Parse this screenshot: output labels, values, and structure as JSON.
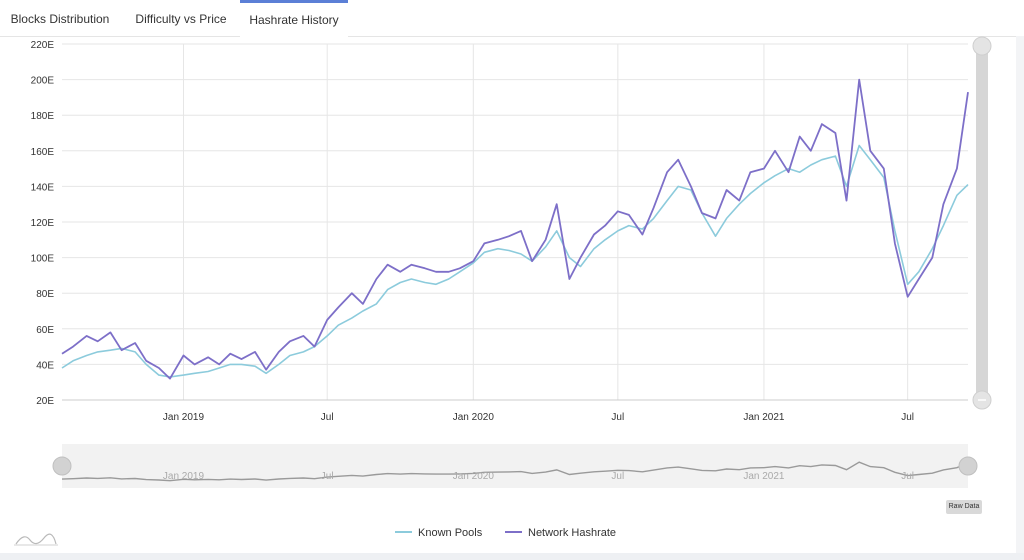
{
  "tabs": [
    {
      "label": "Blocks Distribution",
      "active": false
    },
    {
      "label": "Difficulty vs Price",
      "active": false
    },
    {
      "label": "Hashrate History",
      "active": true
    }
  ],
  "raw_data_button": "Raw Data",
  "colors": {
    "known_pools": "#8ccbdc",
    "network_hashrate": "#7d6fc8",
    "navigator_line": "#9a9a9a",
    "grid": "#e6e6e6",
    "active_tab": "#5b7fd6"
  },
  "chart_data": {
    "type": "line",
    "title": "",
    "xlabel": "",
    "ylabel": "",
    "ylim": [
      20,
      220
    ],
    "y_ticks": [
      {
        "value": 20,
        "label": "20E"
      },
      {
        "value": 40,
        "label": "40E"
      },
      {
        "value": 60,
        "label": "60E"
      },
      {
        "value": 80,
        "label": "80E"
      },
      {
        "value": 100,
        "label": "100E"
      },
      {
        "value": 120,
        "label": "120E"
      },
      {
        "value": 140,
        "label": "140E"
      },
      {
        "value": 160,
        "label": "160E"
      },
      {
        "value": 180,
        "label": "180E"
      },
      {
        "value": 200,
        "label": "200E"
      },
      {
        "value": 220,
        "label": "220E"
      }
    ],
    "x_range": [
      "2018-08-01",
      "2021-09-15"
    ],
    "x_ticks": [
      {
        "date": "2019-01-01",
        "label": "Jan 2019"
      },
      {
        "date": "2019-07-01",
        "label": "Jul"
      },
      {
        "date": "2020-01-01",
        "label": "Jan 2020"
      },
      {
        "date": "2020-07-01",
        "label": "Jul"
      },
      {
        "date": "2021-01-01",
        "label": "Jan 2021"
      },
      {
        "date": "2021-07-01",
        "label": "Jul"
      }
    ],
    "grid": true,
    "legend_position": "bottom-center",
    "series": [
      {
        "name": "Known Pools",
        "color": "#8ccbdc",
        "points": [
          [
            "2018-08-01",
            38
          ],
          [
            "2018-08-15",
            42
          ],
          [
            "2018-09-01",
            45
          ],
          [
            "2018-09-15",
            47
          ],
          [
            "2018-10-01",
            48
          ],
          [
            "2018-10-15",
            49
          ],
          [
            "2018-11-01",
            47
          ],
          [
            "2018-11-15",
            40
          ],
          [
            "2018-12-01",
            34
          ],
          [
            "2018-12-15",
            33
          ],
          [
            "2019-01-01",
            34
          ],
          [
            "2019-01-15",
            35
          ],
          [
            "2019-02-01",
            36
          ],
          [
            "2019-02-15",
            38
          ],
          [
            "2019-03-01",
            40
          ],
          [
            "2019-03-15",
            40
          ],
          [
            "2019-04-01",
            39
          ],
          [
            "2019-04-15",
            35
          ],
          [
            "2019-05-01",
            40
          ],
          [
            "2019-05-15",
            45
          ],
          [
            "2019-06-01",
            47
          ],
          [
            "2019-06-15",
            50
          ],
          [
            "2019-07-01",
            56
          ],
          [
            "2019-07-15",
            62
          ],
          [
            "2019-08-01",
            66
          ],
          [
            "2019-08-15",
            70
          ],
          [
            "2019-09-01",
            74
          ],
          [
            "2019-09-15",
            82
          ],
          [
            "2019-10-01",
            86
          ],
          [
            "2019-10-15",
            88
          ],
          [
            "2019-11-01",
            86
          ],
          [
            "2019-11-15",
            85
          ],
          [
            "2019-12-01",
            88
          ],
          [
            "2019-12-15",
            92
          ],
          [
            "2020-01-01",
            97
          ],
          [
            "2020-01-15",
            103
          ],
          [
            "2020-02-01",
            105
          ],
          [
            "2020-02-15",
            104
          ],
          [
            "2020-03-01",
            102
          ],
          [
            "2020-03-15",
            98
          ],
          [
            "2020-04-01",
            106
          ],
          [
            "2020-04-15",
            115
          ],
          [
            "2020-05-01",
            100
          ],
          [
            "2020-05-15",
            95
          ],
          [
            "2020-06-01",
            105
          ],
          [
            "2020-06-15",
            110
          ],
          [
            "2020-07-01",
            115
          ],
          [
            "2020-07-15",
            118
          ],
          [
            "2020-08-01",
            116
          ],
          [
            "2020-08-15",
            122
          ],
          [
            "2020-09-01",
            132
          ],
          [
            "2020-09-15",
            140
          ],
          [
            "2020-10-01",
            138
          ],
          [
            "2020-10-15",
            125
          ],
          [
            "2020-11-01",
            112
          ],
          [
            "2020-11-15",
            122
          ],
          [
            "2020-12-01",
            130
          ],
          [
            "2020-12-15",
            136
          ],
          [
            "2021-01-01",
            142
          ],
          [
            "2021-01-15",
            146
          ],
          [
            "2021-02-01",
            150
          ],
          [
            "2021-02-15",
            148
          ],
          [
            "2021-03-01",
            152
          ],
          [
            "2021-03-15",
            155
          ],
          [
            "2021-04-01",
            157
          ],
          [
            "2021-04-15",
            140
          ],
          [
            "2021-05-01",
            163
          ],
          [
            "2021-05-15",
            155
          ],
          [
            "2021-06-01",
            145
          ],
          [
            "2021-06-15",
            115
          ],
          [
            "2021-07-01",
            85
          ],
          [
            "2021-07-15",
            92
          ],
          [
            "2021-08-01",
            105
          ],
          [
            "2021-08-15",
            118
          ],
          [
            "2021-09-01",
            135
          ],
          [
            "2021-09-15",
            141
          ]
        ]
      },
      {
        "name": "Network Hashrate",
        "color": "#7d6fc8",
        "points": [
          [
            "2018-08-01",
            46
          ],
          [
            "2018-08-15",
            50
          ],
          [
            "2018-09-01",
            56
          ],
          [
            "2018-09-15",
            53
          ],
          [
            "2018-10-01",
            58
          ],
          [
            "2018-10-15",
            48
          ],
          [
            "2018-11-01",
            52
          ],
          [
            "2018-11-15",
            42
          ],
          [
            "2018-12-01",
            38
          ],
          [
            "2018-12-15",
            32
          ],
          [
            "2019-01-01",
            45
          ],
          [
            "2019-01-15",
            40
          ],
          [
            "2019-02-01",
            44
          ],
          [
            "2019-02-15",
            40
          ],
          [
            "2019-03-01",
            46
          ],
          [
            "2019-03-15",
            43
          ],
          [
            "2019-04-01",
            47
          ],
          [
            "2019-04-15",
            37
          ],
          [
            "2019-05-01",
            47
          ],
          [
            "2019-05-15",
            53
          ],
          [
            "2019-06-01",
            56
          ],
          [
            "2019-06-15",
            50
          ],
          [
            "2019-07-01",
            65
          ],
          [
            "2019-07-15",
            72
          ],
          [
            "2019-08-01",
            80
          ],
          [
            "2019-08-15",
            74
          ],
          [
            "2019-09-01",
            88
          ],
          [
            "2019-09-15",
            96
          ],
          [
            "2019-10-01",
            92
          ],
          [
            "2019-10-15",
            96
          ],
          [
            "2019-11-01",
            94
          ],
          [
            "2019-11-15",
            92
          ],
          [
            "2019-12-01",
            92
          ],
          [
            "2019-12-15",
            94
          ],
          [
            "2020-01-01",
            98
          ],
          [
            "2020-01-15",
            108
          ],
          [
            "2020-02-01",
            110
          ],
          [
            "2020-02-15",
            112
          ],
          [
            "2020-03-01",
            115
          ],
          [
            "2020-03-15",
            98
          ],
          [
            "2020-04-01",
            110
          ],
          [
            "2020-04-15",
            130
          ],
          [
            "2020-05-01",
            88
          ],
          [
            "2020-05-15",
            100
          ],
          [
            "2020-06-01",
            113
          ],
          [
            "2020-06-15",
            118
          ],
          [
            "2020-07-01",
            126
          ],
          [
            "2020-07-15",
            124
          ],
          [
            "2020-08-01",
            113
          ],
          [
            "2020-08-15",
            128
          ],
          [
            "2020-09-01",
            148
          ],
          [
            "2020-09-15",
            155
          ],
          [
            "2020-10-01",
            140
          ],
          [
            "2020-10-15",
            125
          ],
          [
            "2020-11-01",
            122
          ],
          [
            "2020-11-15",
            138
          ],
          [
            "2020-12-01",
            132
          ],
          [
            "2020-12-15",
            148
          ],
          [
            "2021-01-01",
            150
          ],
          [
            "2021-01-15",
            160
          ],
          [
            "2021-02-01",
            148
          ],
          [
            "2021-02-15",
            168
          ],
          [
            "2021-03-01",
            160
          ],
          [
            "2021-03-15",
            175
          ],
          [
            "2021-04-01",
            170
          ],
          [
            "2021-04-15",
            132
          ],
          [
            "2021-05-01",
            200
          ],
          [
            "2021-05-15",
            160
          ],
          [
            "2021-06-01",
            150
          ],
          [
            "2021-06-15",
            108
          ],
          [
            "2021-07-01",
            78
          ],
          [
            "2021-07-15",
            88
          ],
          [
            "2021-08-01",
            100
          ],
          [
            "2021-08-15",
            130
          ],
          [
            "2021-09-01",
            150
          ],
          [
            "2021-09-15",
            193
          ]
        ]
      }
    ]
  }
}
